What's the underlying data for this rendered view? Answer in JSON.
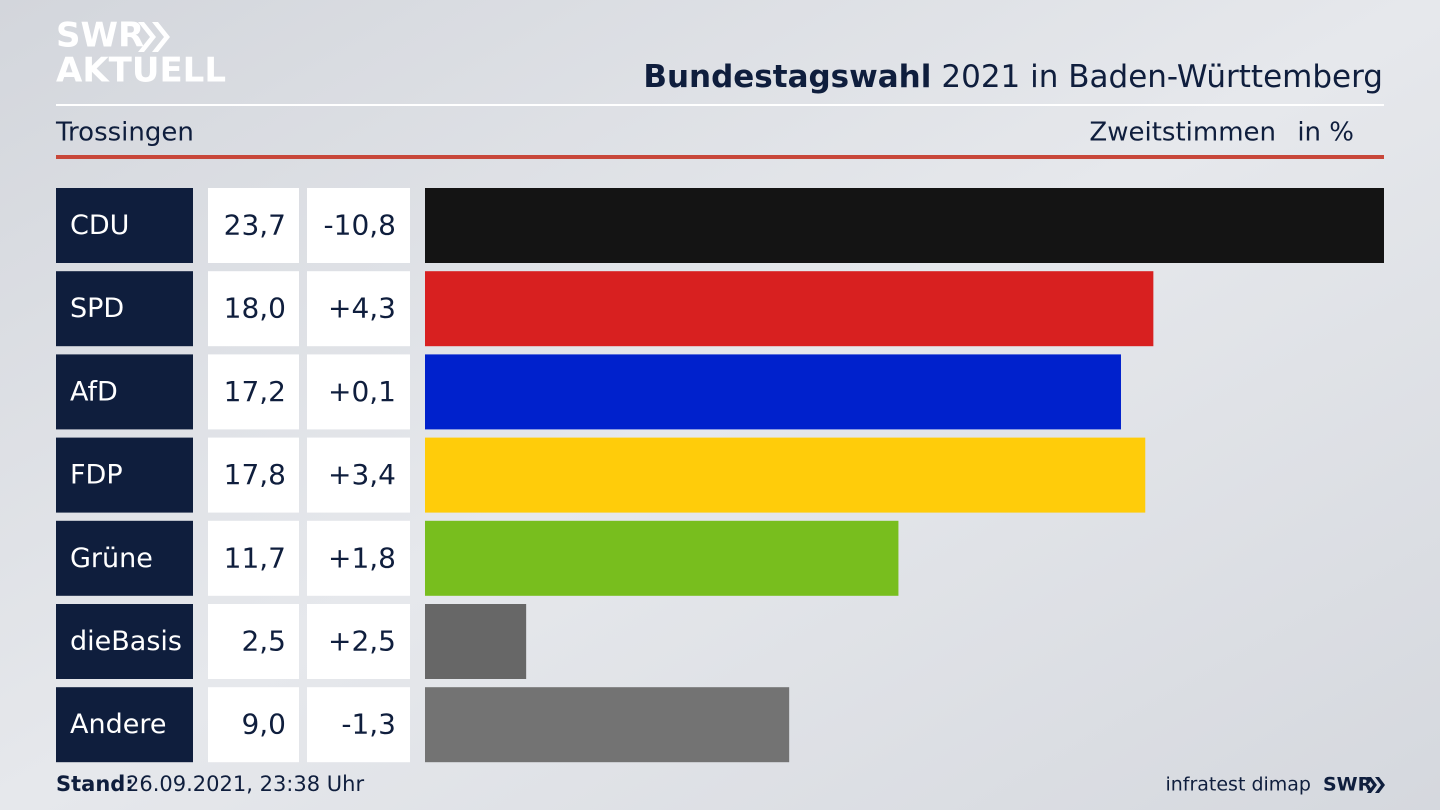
{
  "logo": {
    "line1": "SWR",
    "line2": "AKTUELL"
  },
  "chart_data": {
    "type": "bar",
    "orientation": "horizontal",
    "title": "Bundestagswahl",
    "title_suffix": "2021 in Baden-Württemberg",
    "location": "Trossingen",
    "measure": "Zweitstimmen",
    "unit": "in %",
    "categories": [
      "CDU",
      "SPD",
      "AfD",
      "FDP",
      "Grüne",
      "dieBasis",
      "Andere"
    ],
    "values": [
      23.7,
      18.0,
      17.2,
      17.8,
      11.7,
      2.5,
      9.0
    ],
    "value_labels": [
      "23,7",
      "18,0",
      "17,2",
      "17,8",
      "11,7",
      "2,5",
      "9,0"
    ],
    "changes": [
      "-10,8",
      "+4,3",
      "+0,1",
      "+3,4",
      "+1,8",
      "+2,5",
      "-1,3"
    ],
    "colors": [
      "#141414",
      "#d82020",
      "#0021cc",
      "#ffcc0a",
      "#78be1e",
      "#676767",
      "#737373"
    ],
    "xlim": [
      0,
      23.7
    ]
  },
  "footer": {
    "stand_label": "Stand:",
    "stand": "26.09.2021, 23:38 Uhr",
    "source": "infratest dimap",
    "logo": "SWR"
  }
}
